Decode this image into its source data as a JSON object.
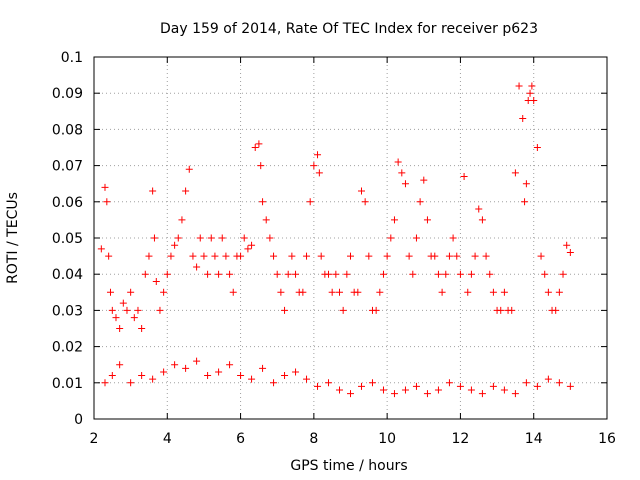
{
  "chart_data": {
    "type": "scatter",
    "title": "Day 159 of 2014, Rate Of TEC Index for receiver p623",
    "xlabel": "GPS time / hours",
    "ylabel": "ROTI / TECUs",
    "xlim": [
      2,
      16
    ],
    "ylim": [
      0,
      0.1
    ],
    "xticks": [
      "2",
      "4",
      "6",
      "8",
      "10",
      "12",
      "14",
      "16"
    ],
    "yticks": [
      "0",
      "0.01",
      "0.02",
      "0.03",
      "0.04",
      "0.05",
      "0.06",
      "0.07",
      "0.08",
      "0.09",
      "0.1"
    ],
    "grid": true,
    "marker": "+",
    "marker_color": "#ff0000",
    "series": [
      {
        "name": "ROTI",
        "x": [
          2.2,
          2.3,
          2.35,
          2.4,
          2.45,
          2.5,
          2.6,
          2.7,
          2.8,
          2.9,
          3.0,
          3.1,
          3.2,
          3.3,
          3.4,
          3.5,
          3.6,
          3.65,
          3.7,
          3.8,
          3.9,
          4.0,
          4.1,
          4.2,
          4.3,
          4.4,
          4.5,
          4.6,
          4.7,
          4.8,
          4.9,
          5.0,
          5.1,
          5.2,
          5.3,
          5.4,
          5.5,
          5.6,
          5.7,
          5.8,
          5.9,
          6.0,
          6.1,
          6.2,
          6.3,
          6.4,
          6.5,
          6.55,
          6.6,
          6.7,
          6.8,
          6.9,
          7.0,
          7.1,
          7.2,
          7.3,
          7.4,
          7.5,
          7.6,
          7.7,
          7.8,
          7.9,
          8.0,
          8.1,
          8.15,
          8.2,
          8.3,
          8.4,
          8.5,
          8.6,
          8.7,
          8.8,
          8.9,
          9.0,
          9.1,
          9.2,
          9.3,
          9.4,
          9.5,
          9.6,
          9.7,
          9.8,
          9.9,
          10.0,
          10.1,
          10.2,
          10.3,
          10.4,
          10.5,
          10.6,
          10.7,
          10.8,
          10.9,
          11.0,
          11.1,
          11.2,
          11.3,
          11.4,
          11.5,
          11.6,
          11.7,
          11.8,
          11.9,
          12.0,
          12.1,
          12.2,
          12.3,
          12.4,
          12.5,
          12.6,
          12.7,
          12.8,
          12.9,
          13.0,
          13.1,
          13.2,
          13.3,
          13.4,
          13.5,
          13.6,
          13.7,
          13.75,
          13.8,
          13.85,
          13.9,
          13.95,
          14.0,
          14.1,
          14.2,
          14.3,
          14.4,
          14.5,
          14.6,
          14.7,
          14.8,
          14.9,
          15.0,
          2.3,
          2.5,
          2.7,
          3.0,
          3.3,
          3.6,
          3.9,
          4.2,
          4.5,
          4.8,
          5.1,
          5.4,
          5.7,
          6.0,
          6.3,
          6.6,
          6.9,
          7.2,
          7.5,
          7.8,
          8.1,
          8.4,
          8.7,
          9.0,
          9.3,
          9.6,
          9.9,
          10.2,
          10.5,
          10.8,
          11.1,
          11.4,
          11.7,
          12.0,
          12.3,
          12.6,
          12.9,
          13.2,
          13.5,
          13.8,
          14.1,
          14.4,
          14.7,
          15.0
        ],
        "y": [
          0.047,
          0.064,
          0.06,
          0.045,
          0.035,
          0.03,
          0.028,
          0.025,
          0.032,
          0.03,
          0.035,
          0.028,
          0.03,
          0.025,
          0.04,
          0.045,
          0.063,
          0.05,
          0.038,
          0.03,
          0.035,
          0.04,
          0.045,
          0.048,
          0.05,
          0.055,
          0.063,
          0.069,
          0.045,
          0.042,
          0.05,
          0.045,
          0.04,
          0.05,
          0.045,
          0.04,
          0.05,
          0.045,
          0.04,
          0.035,
          0.045,
          0.045,
          0.05,
          0.047,
          0.048,
          0.075,
          0.076,
          0.07,
          0.06,
          0.055,
          0.05,
          0.045,
          0.04,
          0.035,
          0.03,
          0.04,
          0.045,
          0.04,
          0.035,
          0.035,
          0.045,
          0.06,
          0.07,
          0.073,
          0.068,
          0.045,
          0.04,
          0.04,
          0.035,
          0.04,
          0.035,
          0.03,
          0.04,
          0.045,
          0.035,
          0.035,
          0.063,
          0.06,
          0.045,
          0.03,
          0.03,
          0.035,
          0.04,
          0.045,
          0.05,
          0.055,
          0.071,
          0.068,
          0.065,
          0.045,
          0.04,
          0.05,
          0.06,
          0.066,
          0.055,
          0.045,
          0.045,
          0.04,
          0.035,
          0.04,
          0.045,
          0.05,
          0.045,
          0.04,
          0.067,
          0.035,
          0.04,
          0.045,
          0.058,
          0.055,
          0.045,
          0.04,
          0.035,
          0.03,
          0.03,
          0.035,
          0.03,
          0.03,
          0.068,
          0.092,
          0.083,
          0.06,
          0.065,
          0.088,
          0.09,
          0.092,
          0.088,
          0.075,
          0.045,
          0.04,
          0.035,
          0.03,
          0.03,
          0.035,
          0.04,
          0.048,
          0.046,
          0.01,
          0.012,
          0.015,
          0.01,
          0.012,
          0.011,
          0.013,
          0.015,
          0.014,
          0.016,
          0.012,
          0.013,
          0.015,
          0.012,
          0.011,
          0.014,
          0.01,
          0.012,
          0.013,
          0.011,
          0.009,
          0.01,
          0.008,
          0.007,
          0.009,
          0.01,
          0.008,
          0.007,
          0.008,
          0.009,
          0.007,
          0.008,
          0.01,
          0.009,
          0.008,
          0.007,
          0.009,
          0.008,
          0.007,
          0.01,
          0.009,
          0.011,
          0.01,
          0.009
        ]
      }
    ]
  }
}
